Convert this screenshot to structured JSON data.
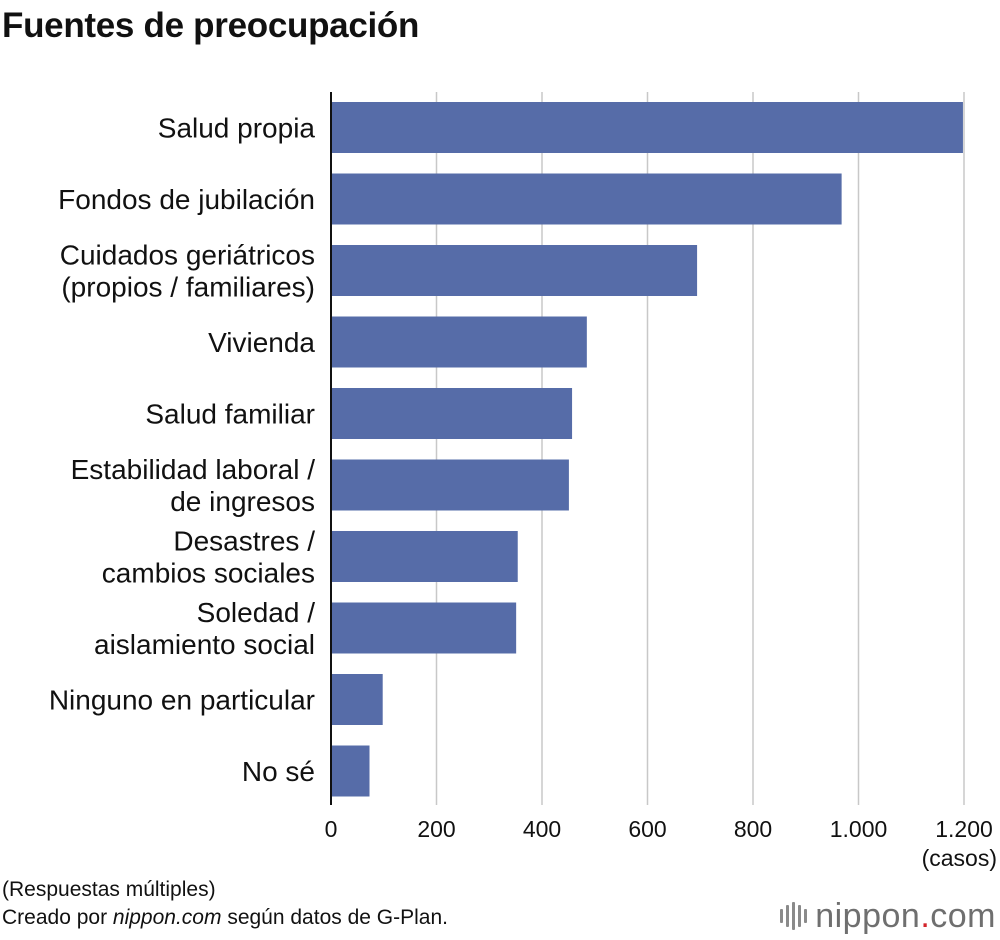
{
  "title": "Fuentes de preocupación",
  "notes": {
    "line1": "(Respuestas múltiples)",
    "line2_prefix": "Creado por ",
    "line2_site": "nippon.com",
    "line2_suffix": " según datos de G-Plan."
  },
  "brand": {
    "name": "nippon",
    "dot": ".",
    "tld": "com",
    "dot_color": "#d3242b"
  },
  "chart_data": {
    "type": "bar",
    "orientation": "horizontal",
    "title": "Fuentes de preocupación",
    "categories": [
      [
        "Salud propia"
      ],
      [
        "Fondos de jubilación"
      ],
      [
        "Cuidados geriátricos",
        "(propios / familiares)"
      ],
      [
        "Vivienda"
      ],
      [
        "Salud familiar"
      ],
      [
        "Estabilidad laboral /",
        "de ingresos"
      ],
      [
        "Desastres /",
        "cambios sociales"
      ],
      [
        "Soledad /",
        "aislamiento social"
      ],
      [
        "Ninguno en particular"
      ],
      [
        "No sé"
      ]
    ],
    "values": [
      1198,
      968,
      694,
      485,
      457,
      451,
      354,
      351,
      98,
      73
    ],
    "xlim": [
      0,
      1200
    ],
    "xticks": [
      0,
      200,
      400,
      600,
      800,
      1000,
      1200
    ],
    "xtick_labels": [
      "0",
      "200",
      "400",
      "600",
      "800",
      "1.000",
      "1.200"
    ],
    "xunit": "(casos)",
    "bar_color": "#566ca8",
    "grid_color": "#c8c8c8",
    "grid": true
  }
}
